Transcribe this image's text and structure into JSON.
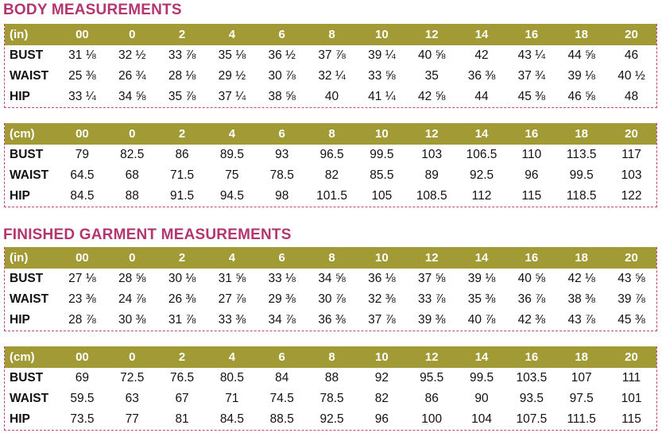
{
  "sections": [
    {
      "title": "BODY MEASUREMENTS",
      "tables": [
        {
          "unit": "(in)",
          "sizes": [
            "00",
            "0",
            "2",
            "4",
            "6",
            "8",
            "10",
            "12",
            "14",
            "16",
            "18",
            "20"
          ],
          "rows": [
            {
              "label": "BUST",
              "values": [
                "31 ⅛",
                "32 ½",
                "33 ⅞",
                "35 ⅛",
                "36 ½",
                "37 ⅞",
                "39 ¼",
                "40 ⅝",
                "42",
                "43 ¼",
                "44 ⅝",
                "46"
              ]
            },
            {
              "label": "WAIST",
              "values": [
                "25 ⅜",
                "26 ¾",
                "28 ⅛",
                "29 ½",
                "30 ⅞",
                "32 ¼",
                "33 ⅝",
                "35",
                "36 ⅜",
                "37 ¾",
                "39 ⅛",
                "40 ½"
              ]
            },
            {
              "label": "HIP",
              "values": [
                "33 ¼",
                "34 ⅝",
                "35 ⅞",
                "37 ¼",
                "38 ⅝",
                "40",
                "41 ¼",
                "42 ⅝",
                "44",
                "45 ⅜",
                "46 ⅝",
                "48"
              ]
            }
          ]
        },
        {
          "unit": "(cm)",
          "sizes": [
            "00",
            "0",
            "2",
            "4",
            "6",
            "8",
            "10",
            "12",
            "14",
            "16",
            "18",
            "20"
          ],
          "rows": [
            {
              "label": "BUST",
              "values": [
                "79",
                "82.5",
                "86",
                "89.5",
                "93",
                "96.5",
                "99.5",
                "103",
                "106.5",
                "110",
                "113.5",
                "117"
              ]
            },
            {
              "label": "WAIST",
              "values": [
                "64.5",
                "68",
                "71.5",
                "75",
                "78.5",
                "82",
                "85.5",
                "89",
                "92.5",
                "96",
                "99.5",
                "103"
              ]
            },
            {
              "label": "HIP",
              "values": [
                "84.5",
                "88",
                "91.5",
                "94.5",
                "98",
                "101.5",
                "105",
                "108.5",
                "112",
                "115",
                "118.5",
                "122"
              ]
            }
          ]
        }
      ]
    },
    {
      "title": "FINISHED GARMENT MEASUREMENTS",
      "tables": [
        {
          "unit": "(in)",
          "sizes": [
            "00",
            "0",
            "2",
            "4",
            "6",
            "8",
            "10",
            "12",
            "14",
            "16",
            "18",
            "20"
          ],
          "rows": [
            {
              "label": "BUST",
              "values": [
                "27 ⅛",
                "28 ⅝",
                "30 ⅛",
                "31 ⅝",
                "33 ⅛",
                "34 ⅝",
                "36 ⅛",
                "37 ⅝",
                "39 ⅛",
                "40 ⅝",
                "42 ⅛",
                "43 ⅝"
              ]
            },
            {
              "label": "WAIST",
              "values": [
                "23 ⅜",
                "24 ⅞",
                "26 ⅜",
                "27 ⅞",
                "29 ⅜",
                "30 ⅞",
                "32 ⅜",
                "33 ⅞",
                "35 ⅜",
                "36 ⅞",
                "38 ⅜",
                "39 ⅞"
              ]
            },
            {
              "label": "HIP",
              "values": [
                "28 ⅞",
                "30 ⅜",
                "31 ⅞",
                "33 ⅜",
                "34 ⅞",
                "36 ⅜",
                "37 ⅞",
                "39 ⅜",
                "40 ⅞",
                "42 ⅜",
                "43 ⅞",
                "45 ⅜"
              ]
            }
          ]
        },
        {
          "unit": "(cm)",
          "sizes": [
            "00",
            "0",
            "2",
            "4",
            "6",
            "8",
            "10",
            "12",
            "14",
            "16",
            "18",
            "20"
          ],
          "rows": [
            {
              "label": "BUST",
              "values": [
                "69",
                "72.5",
                "76.5",
                "80.5",
                "84",
                "88",
                "92",
                "95.5",
                "99.5",
                "103.5",
                "107",
                "111"
              ]
            },
            {
              "label": "WAIST",
              "values": [
                "59.5",
                "63",
                "67",
                "71",
                "74.5",
                "78.5",
                "82",
                "86",
                "90",
                "93.5",
                "97.5",
                "101"
              ]
            },
            {
              "label": "HIP",
              "values": [
                "73.5",
                "77",
                "81",
                "84.5",
                "88.5",
                "92.5",
                "96",
                "100",
                "104",
                "107.5",
                "111.5",
                "115"
              ]
            }
          ]
        }
      ]
    }
  ],
  "colors": {
    "title": "#b3366f",
    "header_bg": "#a19a35",
    "header_text": "#ffffff",
    "dashed_border": "#c0457a",
    "body_text": "#111111"
  }
}
